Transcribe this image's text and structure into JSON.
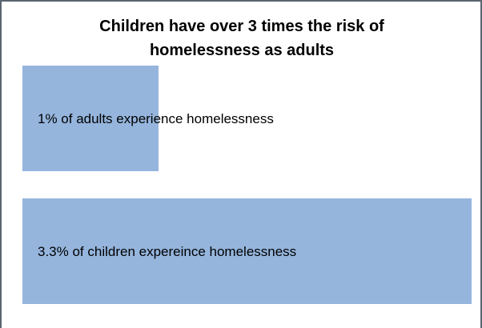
{
  "chart_data": {
    "type": "bar",
    "orientation": "horizontal",
    "title_lines": [
      "Children have over 3 times the risk of",
      "homelessness as adults"
    ],
    "categories": [
      "adults",
      "children"
    ],
    "values": [
      1,
      3.3
    ],
    "unit": "%",
    "labels": [
      "1% of adults experience homelessness",
      "3.3% of children expereince homelessness"
    ],
    "xlim": [
      0,
      3.3
    ],
    "grid": false,
    "colors": {
      "bar": "#95B5DD",
      "frame": "#5B6470",
      "text": "#000000"
    }
  }
}
